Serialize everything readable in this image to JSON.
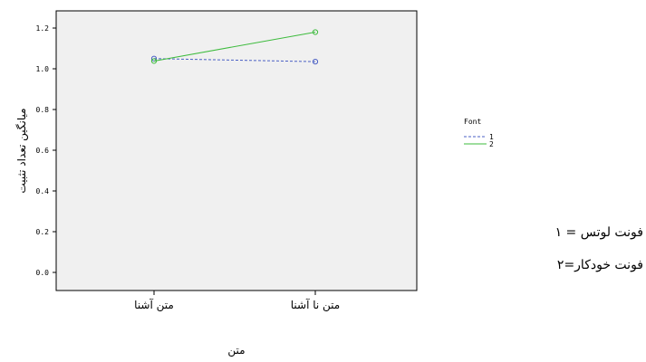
{
  "chart_data": {
    "type": "line",
    "xlabel": "متن",
    "ylabel": "میانگین تعداد تثبیت",
    "categories": [
      "متن  آشنا",
      "متن  نا آشنا"
    ],
    "ylim": [
      -0.05,
      1.32
    ],
    "yticks": [
      "0.0",
      "0.2",
      "0.4",
      "0.6",
      "0.8",
      "1.0",
      "1.2"
    ],
    "grid": false,
    "background": "#f0f0f0",
    "legend": {
      "title": "Font",
      "position": "right"
    },
    "series": [
      {
        "name": "1",
        "values": [
          1.05,
          1.035
        ],
        "color": "#4a5fc4",
        "dash": "dashed"
      },
      {
        "name": "2",
        "values": [
          1.038,
          1.18
        ],
        "color": "#3dbb3d",
        "dash": "solid"
      }
    ]
  },
  "notes": [
    "فونت لوتس = ۱",
    "فونت خودکار=۲"
  ]
}
